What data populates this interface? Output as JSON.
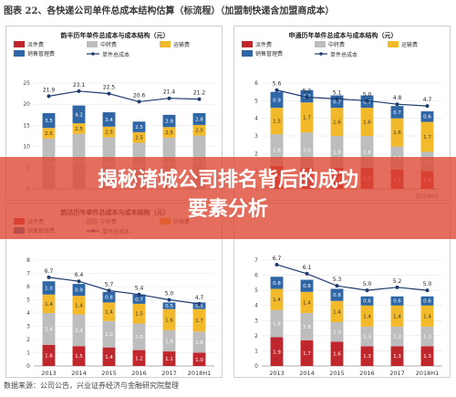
{
  "figure_title": "图表 22、各快递公司单件总成本结构估算（标流程）（加盟制快递含加盟商成本）",
  "source_note": "数据来源：公司公告，兴业证券经济与金融研究院整理",
  "banner": {
    "line1": "揭秘诸城公司排名背后的成功",
    "line2": "要素分析"
  },
  "colors": {
    "派件费": "#c0272d",
    "中转费": "#bdbdbd",
    "运输费": "#f2b92b",
    "销售管理费": "#2f67a6",
    "单件总成本": "#1f3b6e",
    "banner": "#de4834"
  },
  "chart_data": [
    {
      "type": "bar",
      "title": "韵丰历年单件总成本与成本结构（元）",
      "legend": [
        "派件费",
        "中转费",
        "运输费",
        "销售管理费",
        "单件总成本"
      ],
      "categories": [
        "",
        "",
        "",
        "",
        "",
        ""
      ],
      "ylim": [
        0,
        25
      ],
      "yticks": [
        0,
        5,
        10,
        15,
        20,
        25
      ],
      "series": [
        {
          "name": "中转费",
          "values": [
            11.9,
            13.0,
            12.2,
            10.9,
            12.1,
            12.6
          ]
        },
        {
          "name": "运输费",
          "values": [
            2.5,
            2.5,
            2.5,
            2.5,
            2.5,
            2.5
          ]
        },
        {
          "name": "销售管理费",
          "values": [
            3.5,
            4.2,
            3.4,
            2.5,
            2.9,
            2.8
          ]
        }
      ],
      "total_series": {
        "name": "单件总成本",
        "values": [
          21.9,
          23.1,
          22.5,
          20.6,
          21.4,
          21.2
        ]
      }
    },
    {
      "type": "bar",
      "title": "申通历年单件总成本与成本结构（元）",
      "legend": [
        "派件费",
        "中转费",
        "运输费",
        "销售管理费",
        "单件总成本"
      ],
      "categories": [
        "",
        "",
        "",
        "",
        "",
        "2018H1"
      ],
      "ylim": [
        0,
        6
      ],
      "yticks": [
        0,
        1,
        2,
        3,
        4,
        5,
        6
      ],
      "series": [
        {
          "name": "派件费",
          "values": [
            1.3,
            1.2,
            1.2,
            1.2,
            1.1,
            1.0
          ]
        },
        {
          "name": "中转费",
          "values": [
            1.8,
            2.0,
            1.8,
            1.8,
            1.3,
            1.1
          ]
        },
        {
          "name": "运输费",
          "values": [
            1.5,
            1.7,
            1.6,
            1.6,
            1.6,
            1.7
          ]
        },
        {
          "name": "销售管理费",
          "values": [
            0.9,
            0.7,
            0.7,
            0.7,
            0.7,
            0.6
          ]
        }
      ],
      "total_series": {
        "name": "单件总成本",
        "values": [
          5.6,
          5.2,
          5.1,
          5.0,
          4.8,
          4.7
        ]
      }
    },
    {
      "type": "bar",
      "title": "韵达历年单件总成本与成本结构（元）",
      "legend": [
        "派件费",
        "中转费",
        "运输费",
        "销售管理费",
        "单件总成本"
      ],
      "categories": [
        "2013",
        "2014",
        "2015",
        "2016",
        "2017",
        "2018H1"
      ],
      "ylim": [
        0,
        8
      ],
      "yticks": [
        0,
        1,
        2,
        3,
        4,
        5,
        6,
        7,
        8
      ],
      "series": [
        {
          "name": "派件费",
          "values": [
            1.6,
            1.5,
            1.4,
            1.2,
            1.1,
            1.0
          ]
        },
        {
          "name": "中转费",
          "values": [
            2.4,
            2.4,
            2.0,
            2.0,
            1.6,
            1.6
          ]
        },
        {
          "name": "运输费",
          "values": [
            1.4,
            1.4,
            1.4,
            1.5,
            1.6,
            1.7
          ]
        },
        {
          "name": "销售管理费",
          "values": [
            1.0,
            0.9,
            0.8,
            0.7,
            0.5,
            0.5
          ]
        }
      ],
      "total_series": {
        "name": "单件总成本",
        "values": [
          6.7,
          6.4,
          5.7,
          5.4,
          5.0,
          4.7
        ]
      }
    },
    {
      "type": "bar",
      "title": "",
      "legend": [],
      "categories": [
        "2013",
        "2014",
        "2015",
        "2016",
        "2017",
        "2018H1"
      ],
      "ylim": [
        0,
        7
      ],
      "yticks": [
        0,
        1,
        2,
        3,
        4,
        5,
        6,
        7
      ],
      "series": [
        {
          "name": "派件费",
          "values": [
            1.9,
            1.7,
            1.6,
            1.3,
            1.3,
            1.3
          ]
        },
        {
          "name": "中转费",
          "values": [
            1.8,
            1.8,
            1.3,
            1.3,
            1.3,
            1.3
          ]
        },
        {
          "name": "运输费",
          "values": [
            1.4,
            1.4,
            1.4,
            1.4,
            1.4,
            1.4
          ]
        },
        {
          "name": "销售管理费",
          "values": [
            0.8,
            0.8,
            0.8,
            0.6,
            0.6,
            0.6
          ]
        }
      ],
      "total_series": {
        "name": "",
        "values": [
          6.7,
          6.1,
          5.3,
          5.0,
          5.2,
          5.0
        ]
      }
    }
  ]
}
